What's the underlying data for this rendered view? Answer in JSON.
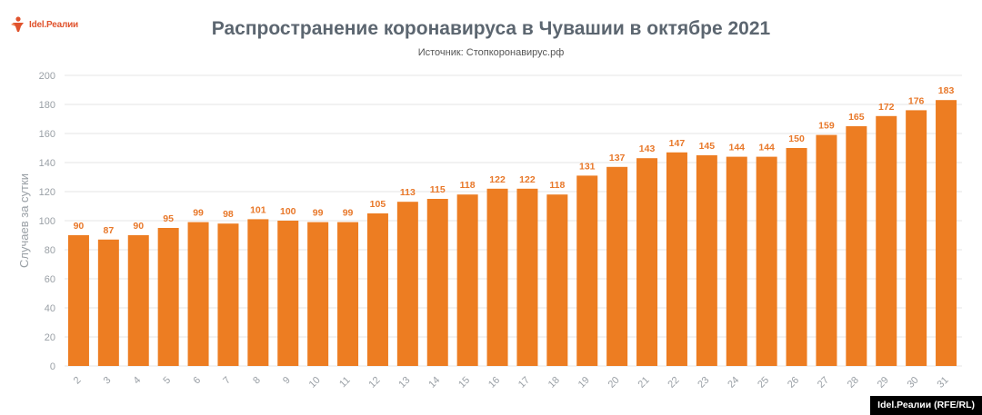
{
  "brand": {
    "logo_text": "Idel.Реалии",
    "badge": "Idel.Реалии (RFE/RL)"
  },
  "colors": {
    "bar": "#ed7d22",
    "label": "#e8782a",
    "grid": "#e6e6e6",
    "title": "#5c6670"
  },
  "chart_data": {
    "type": "bar",
    "title": "Распространение коронавируса в Чувашии в октябре 2021",
    "subtitle": "Источник: Стопкоронавирус.рф",
    "xlabel": "",
    "ylabel": "Случаев за сутки",
    "ylim": [
      0,
      200
    ],
    "yticks": [
      0,
      20,
      40,
      60,
      80,
      100,
      120,
      140,
      160,
      180,
      200
    ],
    "grid": true,
    "categories": [
      "2",
      "3",
      "4",
      "5",
      "6",
      "7",
      "8",
      "9",
      "10",
      "11",
      "12",
      "13",
      "14",
      "15",
      "16",
      "17",
      "18",
      "19",
      "20",
      "21",
      "22",
      "23",
      "24",
      "25",
      "26",
      "27",
      "28",
      "29",
      "30",
      "31"
    ],
    "values": [
      90,
      87,
      90,
      95,
      99,
      98,
      101,
      100,
      99,
      99,
      105,
      113,
      115,
      118,
      122,
      122,
      118,
      131,
      137,
      143,
      147,
      145,
      144,
      144,
      150,
      159,
      165,
      172,
      176,
      183
    ]
  }
}
